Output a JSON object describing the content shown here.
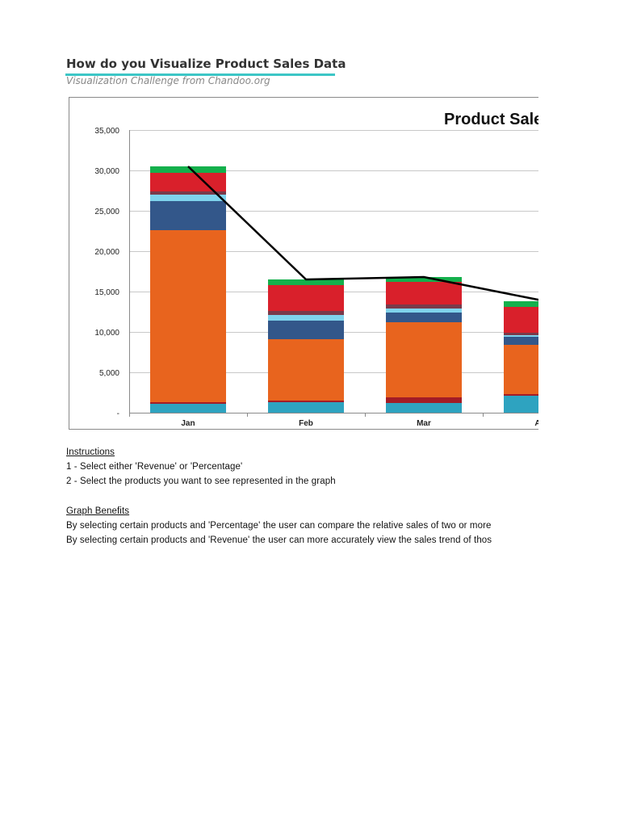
{
  "header": {
    "title": "How do you Visualize Product Sales Data",
    "subtitle": "Visualization Challenge from Chandoo.org"
  },
  "chart_data": {
    "type": "bar",
    "stacked": true,
    "title": "Product Sales",
    "categories": [
      "Jan",
      "Feb",
      "Mar",
      "Apr"
    ],
    "ylim": [
      0,
      35000
    ],
    "yticks": [
      "-",
      "5,000",
      "10,000",
      "15,000",
      "20,000",
      "25,000",
      "30,000",
      "35,000"
    ],
    "grid": true,
    "series": [
      {
        "color": "#2ea3c0",
        "values": [
          1100,
          1300,
          1200,
          2100
        ]
      },
      {
        "color": "#a31c26",
        "values": [
          200,
          200,
          700,
          200
        ]
      },
      {
        "color": "#e8641e",
        "values": [
          21300,
          7600,
          9300,
          6100
        ]
      },
      {
        "color": "#33578a",
        "values": [
          3600,
          2300,
          1200,
          1000
        ]
      },
      {
        "color": "#7fd3ec",
        "values": [
          800,
          700,
          500,
          200
        ]
      },
      {
        "color": "#7a3a4a",
        "values": [
          400,
          500,
          500,
          300
        ]
      },
      {
        "color": "#d9202b",
        "values": [
          2300,
          3200,
          2800,
          3200
        ]
      },
      {
        "color": "#14b04c",
        "values": [
          800,
          700,
          600,
          700
        ]
      }
    ],
    "line": {
      "color": "#000000",
      "values": [
        30500,
        16500,
        16800,
        13900
      ]
    }
  },
  "instructions": {
    "heading": "Instructions",
    "steps": [
      "1 - Select either 'Revenue' or 'Percentage'",
      "2 - Select the products you want to see represented in the graph"
    ]
  },
  "benefits": {
    "heading": "Graph Benefits",
    "lines": [
      "By selecting certain products and 'Percentage' the user can compare the relative sales of two or more",
      "By selecting certain products and 'Revenue' the user can more accurately view the sales trend of thos"
    ]
  }
}
